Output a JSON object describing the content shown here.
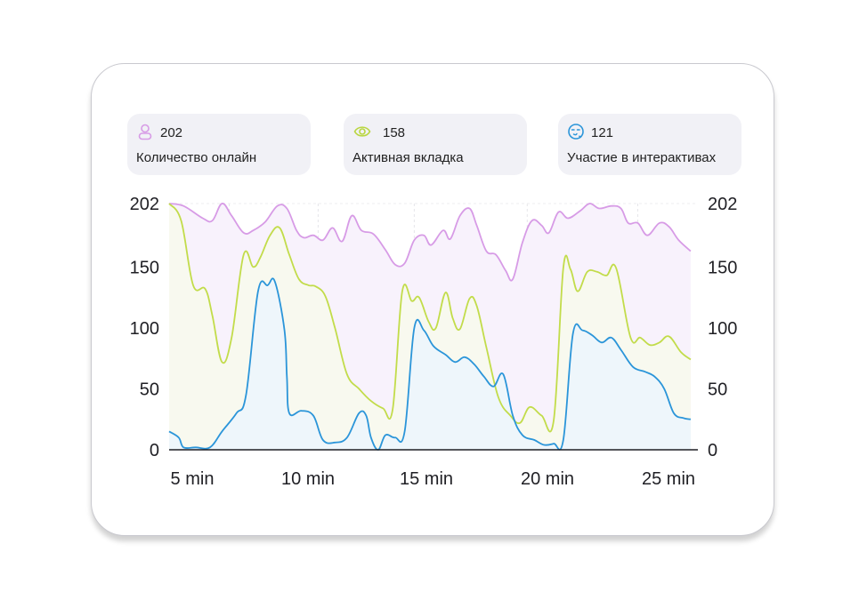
{
  "stats": [
    {
      "value": "202",
      "label": "Количество онлайн",
      "icon": "user-icon",
      "color": "#d79be6"
    },
    {
      "value": "158",
      "label": "Активная вкладка",
      "icon": "eye-icon",
      "color": "#b9d640"
    },
    {
      "value": "121",
      "label": "Участие в интерактивах",
      "icon": "emoji-heart-icon",
      "color": "#2b95d9"
    }
  ],
  "chart_data": {
    "type": "area",
    "x_unit": "min",
    "x_ticks": [
      "5 min",
      "10 min",
      "15 min",
      "20 min",
      "25 min"
    ],
    "x_tick_values": [
      5,
      10,
      15,
      20,
      25
    ],
    "xlim": [
      5,
      27
    ],
    "y_ticks_left": [
      "202",
      "150",
      "100",
      "50",
      "0"
    ],
    "y_ticks_right": [
      "202",
      "150",
      "100",
      "50",
      "0"
    ],
    "y_tick_values": [
      202,
      150,
      100,
      50,
      0
    ],
    "ylim": [
      0,
      202
    ],
    "grid": "vertical dashed",
    "series": [
      {
        "color": "#d79be6",
        "fill": "#f8f2fc",
        "points": [
          [
            5,
            202
          ],
          [
            5.6,
            200
          ],
          [
            6.4,
            190
          ],
          [
            6.8,
            188
          ],
          [
            7.2,
            202
          ],
          [
            7.6,
            192
          ],
          [
            8.1,
            178
          ],
          [
            8.5,
            180
          ],
          [
            9,
            187
          ],
          [
            9.5,
            200
          ],
          [
            9.9,
            198
          ],
          [
            10.3,
            180
          ],
          [
            10.6,
            174
          ],
          [
            11,
            176
          ],
          [
            11.4,
            172
          ],
          [
            11.8,
            182
          ],
          [
            12.2,
            171
          ],
          [
            12.6,
            192
          ],
          [
            13,
            180
          ],
          [
            13.5,
            177
          ],
          [
            14,
            164
          ],
          [
            14.4,
            152
          ],
          [
            14.8,
            153
          ],
          [
            15.2,
            172
          ],
          [
            15.6,
            176
          ],
          [
            15.9,
            168
          ],
          [
            16.4,
            180
          ],
          [
            16.7,
            173
          ],
          [
            17.1,
            192
          ],
          [
            17.5,
            198
          ],
          [
            17.8,
            184
          ],
          [
            18.2,
            163
          ],
          [
            18.6,
            160
          ],
          [
            19,
            147
          ],
          [
            19.3,
            140
          ],
          [
            19.7,
            170
          ],
          [
            20.1,
            188
          ],
          [
            20.5,
            184
          ],
          [
            20.8,
            178
          ],
          [
            21.2,
            195
          ],
          [
            21.6,
            190
          ],
          [
            22.1,
            196
          ],
          [
            22.5,
            202
          ],
          [
            22.9,
            198
          ],
          [
            23.4,
            200
          ],
          [
            23.8,
            198
          ],
          [
            24.1,
            186
          ],
          [
            24.5,
            186
          ],
          [
            24.9,
            176
          ],
          [
            25.4,
            186
          ],
          [
            25.8,
            183
          ],
          [
            26.2,
            172
          ],
          [
            26.7,
            163
          ]
        ]
      },
      {
        "color": "#c2dc4a",
        "fill": "#f8f9ef",
        "points": [
          [
            5,
            202
          ],
          [
            5.5,
            188
          ],
          [
            6,
            135
          ],
          [
            6.5,
            132
          ],
          [
            6.8,
            110
          ],
          [
            7.2,
            72
          ],
          [
            7.6,
            92
          ],
          [
            8.1,
            160
          ],
          [
            8.5,
            150
          ],
          [
            8.8,
            158
          ],
          [
            9.2,
            176
          ],
          [
            9.6,
            182
          ],
          [
            10,
            160
          ],
          [
            10.4,
            140
          ],
          [
            10.8,
            135
          ],
          [
            11.1,
            134
          ],
          [
            11.5,
            126
          ],
          [
            11.9,
            100
          ],
          [
            12.4,
            62
          ],
          [
            12.9,
            50
          ],
          [
            13.4,
            40
          ],
          [
            13.9,
            34
          ],
          [
            14.3,
            33
          ],
          [
            14.7,
            130
          ],
          [
            15.1,
            122
          ],
          [
            15.4,
            125
          ],
          [
            15.8,
            105
          ],
          [
            16.1,
            100
          ],
          [
            16.5,
            129
          ],
          [
            16.8,
            108
          ],
          [
            17.1,
            99
          ],
          [
            17.5,
            124
          ],
          [
            17.8,
            118
          ],
          [
            18.2,
            84
          ],
          [
            18.7,
            43
          ],
          [
            19.2,
            28
          ],
          [
            19.6,
            22
          ],
          [
            20,
            35
          ],
          [
            20.5,
            28
          ],
          [
            21,
            24
          ],
          [
            21.4,
            149
          ],
          [
            21.7,
            148
          ],
          [
            22,
            130
          ],
          [
            22.4,
            146
          ],
          [
            22.8,
            146
          ],
          [
            23.2,
            143
          ],
          [
            23.6,
            149
          ],
          [
            24.2,
            92
          ],
          [
            24.6,
            92
          ],
          [
            25,
            86
          ],
          [
            25.4,
            88
          ],
          [
            25.8,
            93
          ],
          [
            26.3,
            80
          ],
          [
            26.7,
            74
          ]
        ]
      },
      {
        "color": "#2b95d9",
        "fill": "#eef6fb",
        "points": [
          [
            5,
            15
          ],
          [
            5.4,
            10
          ],
          [
            5.6,
            2
          ],
          [
            6.1,
            2
          ],
          [
            6.7,
            2
          ],
          [
            7.2,
            15
          ],
          [
            7.8,
            30
          ],
          [
            8.2,
            45
          ],
          [
            8.7,
            130
          ],
          [
            9.1,
            135
          ],
          [
            9.4,
            138
          ],
          [
            9.8,
            98
          ],
          [
            9.9,
            60
          ],
          [
            10,
            30
          ],
          [
            10.5,
            32
          ],
          [
            11,
            28
          ],
          [
            11.4,
            8
          ],
          [
            11.9,
            6
          ],
          [
            12.4,
            10
          ],
          [
            12.9,
            30
          ],
          [
            13.2,
            28
          ],
          [
            13.4,
            10
          ],
          [
            13.7,
            0
          ],
          [
            14,
            12
          ],
          [
            14.4,
            10
          ],
          [
            14.8,
            15
          ],
          [
            15.2,
            100
          ],
          [
            15.6,
            98
          ],
          [
            16,
            85
          ],
          [
            16.5,
            78
          ],
          [
            16.9,
            72
          ],
          [
            17.3,
            76
          ],
          [
            17.7,
            70
          ],
          [
            18.1,
            60
          ],
          [
            18.5,
            52
          ],
          [
            18.9,
            62
          ],
          [
            19.3,
            28
          ],
          [
            19.7,
            12
          ],
          [
            20.2,
            8
          ],
          [
            20.6,
            4
          ],
          [
            21,
            5
          ],
          [
            21.4,
            8
          ],
          [
            21.8,
            95
          ],
          [
            22.2,
            98
          ],
          [
            22.6,
            94
          ],
          [
            23,
            88
          ],
          [
            23.4,
            92
          ],
          [
            23.8,
            82
          ],
          [
            24.3,
            68
          ],
          [
            24.8,
            64
          ],
          [
            25.2,
            60
          ],
          [
            25.6,
            50
          ],
          [
            26,
            30
          ],
          [
            26.4,
            26
          ],
          [
            26.7,
            25
          ]
        ]
      }
    ]
  }
}
